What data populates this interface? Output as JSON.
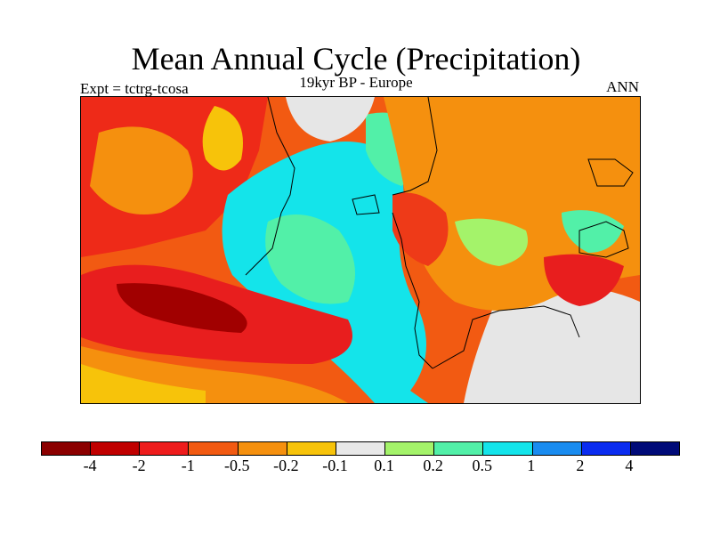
{
  "title": "Mean Annual Cycle (Precipitation)",
  "subtitle": "19kyr BP - Europe",
  "experiment": "Expt = tctrg-tcosa",
  "season": "ANN",
  "colorbar": {
    "colors": [
      "#8b0000",
      "#c00000",
      "#ee1c1c",
      "#f25a12",
      "#f5900e",
      "#f7c30a",
      "#e8e8e8",
      "#a4f36a",
      "#52f0a8",
      "#14e4ea",
      "#1a8cf0",
      "#0a2cf0",
      "#000a78"
    ],
    "labels": [
      "-4",
      "-2",
      "-1",
      "-0.5",
      "-0.2",
      "-0.1",
      "0.1",
      "0.2",
      "0.5",
      "1",
      "2",
      "4"
    ]
  },
  "map_palette": {
    "dark_red": "#a10000",
    "red": "#e81e1e",
    "orange_red": "#f25a12",
    "orange": "#f5900e",
    "yellow": "#f7c30a",
    "grey": "#e6e6e6",
    "light_green": "#a4f36a",
    "sea_green": "#52f0a8",
    "cyan": "#14e4ea",
    "blue": "#1a8cf0",
    "coastline": "#000000"
  }
}
